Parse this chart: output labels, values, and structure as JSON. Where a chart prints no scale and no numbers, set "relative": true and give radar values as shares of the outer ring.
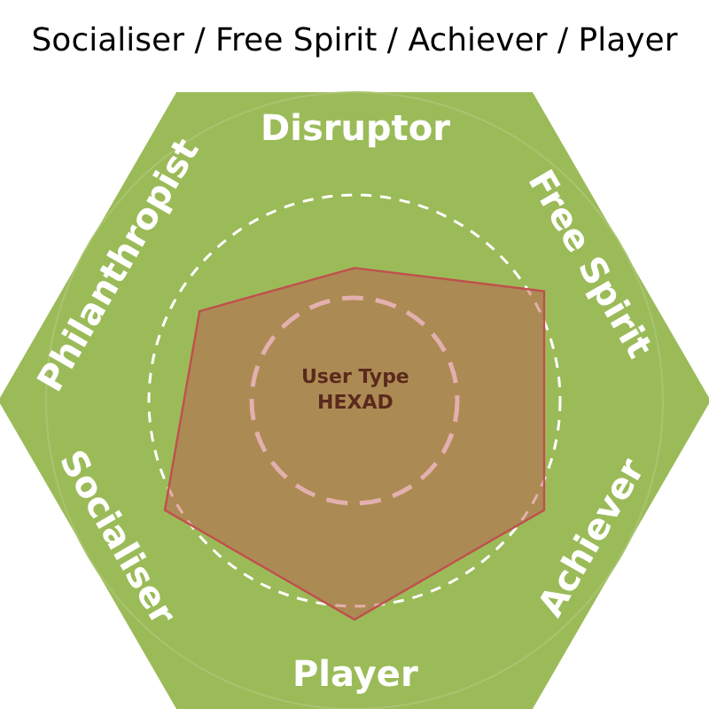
{
  "chart_data": {
    "type": "radar",
    "title": "Socialiser / Free Spirit / Achiever / Player",
    "categories": [
      "Disruptor",
      "Free Spirit",
      "Achiever",
      "Player",
      "Socialiser",
      "Philanthropist"
    ],
    "series": [
      {
        "color": "#c0504d",
        "values": [
          0.43,
          0.71,
          0.71,
          0.71,
          0.71,
          0.58
        ]
      }
    ],
    "relative": true,
    "grid": true,
    "annotations": [
      "User Type\nHEXAD"
    ]
  }
}
